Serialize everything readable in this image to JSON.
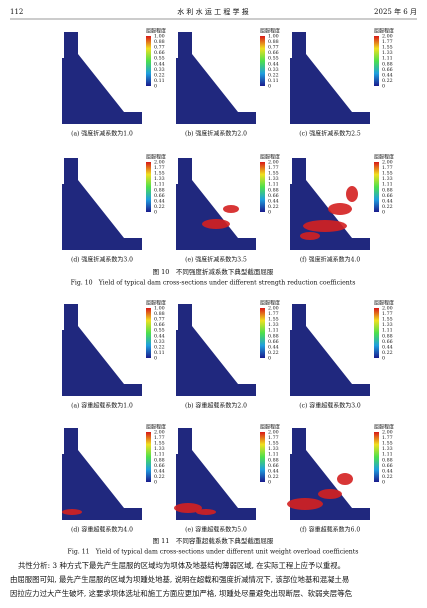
{
  "header": {
    "page": "112",
    "journal": "水 利 水 运 工 程 学 报",
    "date": "2025 年 6 月"
  },
  "figures": [
    {
      "panels": [
        {
          "caption": "(a) 强度折减系数为1.0",
          "legend_title": "屈服程度",
          "ticks": [
            "1.00",
            "0.88",
            "0.77",
            "0.66",
            "0.55",
            "0.44",
            "0.33",
            "0.22",
            "0.11",
            "0"
          ]
        },
        {
          "caption": "(b) 强度折减系数为2.0",
          "legend_title": "屈服程度",
          "ticks": [
            "1.00",
            "0.88",
            "0.77",
            "0.66",
            "0.55",
            "0.44",
            "0.33",
            "0.22",
            "0.11",
            "0"
          ]
        },
        {
          "caption": "(c) 强度折减系数为2.5",
          "legend_title": "屈服程度",
          "ticks": [
            "2.00",
            "1.77",
            "1.55",
            "1.33",
            "1.11",
            "0.88",
            "0.66",
            "0.44",
            "0.22",
            "0"
          ]
        },
        {
          "caption": "(d) 强度折减系数为3.0",
          "legend_title": "屈服程度",
          "ticks": [
            "2.00",
            "1.77",
            "1.55",
            "1.33",
            "1.11",
            "0.88",
            "0.66",
            "0.44",
            "0.22",
            "0"
          ]
        },
        {
          "caption": "(e) 强度折减系数为3.5",
          "legend_title": "屈服程度",
          "ticks": [
            "2.00",
            "1.77",
            "1.55",
            "1.33",
            "1.11",
            "0.88",
            "0.66",
            "0.44",
            "0.22",
            "0"
          ]
        },
        {
          "caption": "(f) 强度折减系数为4.0",
          "legend_title": "屈服程度",
          "ticks": [
            "2.00",
            "1.77",
            "1.55",
            "1.33",
            "1.11",
            "0.88",
            "0.66",
            "0.44",
            "0.22",
            "0"
          ]
        }
      ],
      "caption_cn": "图 10　不同强度折减系数下典型截面屈服",
      "caption_en": "Fig. 10　Yield of typical dam cross-sections under different strength reduction coefficients"
    },
    {
      "panels": [
        {
          "caption": "(a) 容重超载系数为1.0",
          "legend_title": "屈服程度",
          "ticks": [
            "1.00",
            "0.88",
            "0.77",
            "0.66",
            "0.55",
            "0.44",
            "0.33",
            "0.22",
            "0.11",
            "0"
          ]
        },
        {
          "caption": "(b) 容重超载系数为2.0",
          "legend_title": "屈服程度",
          "ticks": [
            "2.00",
            "1.77",
            "1.55",
            "1.33",
            "1.11",
            "0.88",
            "0.66",
            "0.44",
            "0.22",
            "0"
          ]
        },
        {
          "caption": "(c) 容重超载系数为3.0",
          "legend_title": "屈服程度",
          "ticks": [
            "2.00",
            "1.77",
            "1.55",
            "1.33",
            "1.11",
            "0.88",
            "0.66",
            "0.44",
            "0.22",
            "0"
          ]
        },
        {
          "caption": "(d) 容重超载系数为4.0",
          "legend_title": "屈服程度",
          "ticks": [
            "2.00",
            "1.77",
            "1.55",
            "1.33",
            "1.11",
            "0.88",
            "0.66",
            "0.44",
            "0.22",
            "0"
          ]
        },
        {
          "caption": "(e) 容重超载系数为5.0",
          "legend_title": "屈服程度",
          "ticks": [
            "2.00",
            "1.77",
            "1.55",
            "1.33",
            "1.11",
            "0.88",
            "0.66",
            "0.44",
            "0.22",
            "0"
          ]
        },
        {
          "caption": "(f) 容重超载系数为6.0",
          "legend_title": "屈服程度",
          "ticks": [
            "2.00",
            "1.77",
            "1.55",
            "1.33",
            "1.11",
            "0.88",
            "0.66",
            "0.44",
            "0.22",
            "0"
          ]
        }
      ],
      "caption_cn": "图 11　不同容重超载系数下典型截面屈服",
      "caption_en": "Fig. 11　Yield of typical dam cross-sections under different unit weight overload coefficients"
    }
  ],
  "body": [
    "共性分析: 3 种方式下最先产生屈服的区域均为坝体及地基结构薄弱区域, 在实际工程上应予以重视。",
    "由屈服图可知, 最先产生屈服的区域为坝踵处地基, 说明在超载和强度折减情况下, 该部位地基和混凝土易",
    "因拉应力过大产生破坏, 这要求坝体选址和施工方面应更加严格, 坝踵处尽量避免出现断层、软弱夹层等危"
  ]
}
